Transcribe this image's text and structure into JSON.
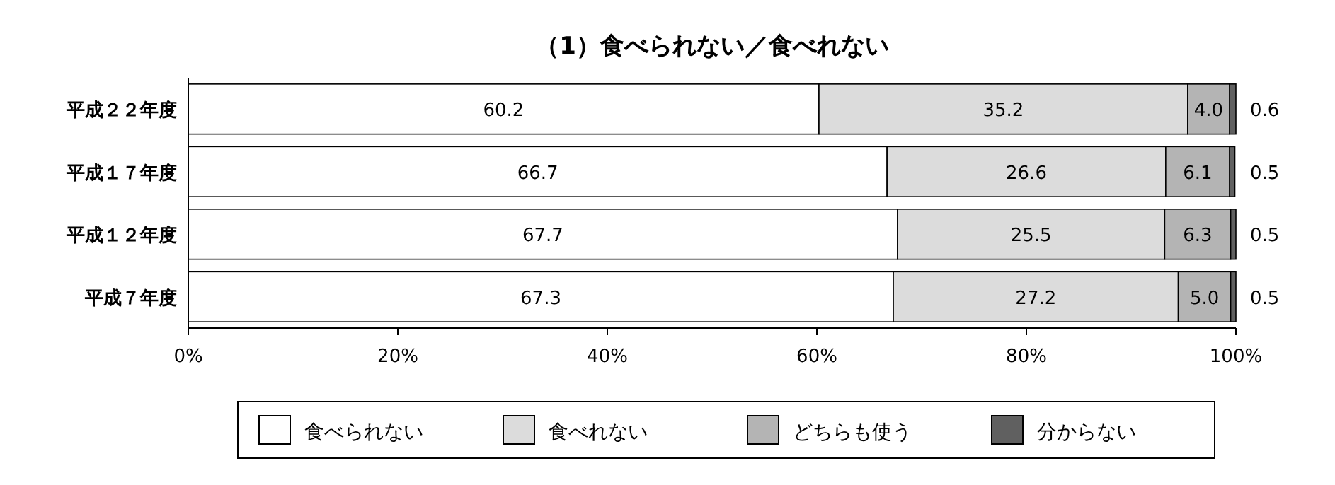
{
  "chart_data": {
    "type": "bar",
    "orientation": "horizontal",
    "stacked": true,
    "title": "（1）食べられない／食べれない",
    "categories": [
      "平成２２年度",
      "平成１７年度",
      "平成１２年度",
      "平成７年度"
    ],
    "series": [
      {
        "name": "食べられない",
        "color": "#ffffff",
        "values": [
          60.2,
          66.7,
          67.7,
          67.3
        ],
        "value_labels": [
          "60.2",
          "66.7",
          "67.7",
          "67.3"
        ]
      },
      {
        "name": "食べれない",
        "color": "#dcdcdc",
        "values": [
          35.2,
          26.6,
          25.5,
          27.2
        ],
        "value_labels": [
          "35.2",
          "26.6",
          "25.5",
          "27.2"
        ]
      },
      {
        "name": "どちらも使う",
        "color": "#b4b4b4",
        "values": [
          4.0,
          6.1,
          6.3,
          5.0
        ],
        "value_labels": [
          "4.0",
          "6.1",
          "6.3",
          "5.0"
        ]
      },
      {
        "name": "分からない",
        "color": "#606060",
        "values": [
          0.6,
          0.5,
          0.5,
          0.5
        ],
        "value_labels": [
          "0.6",
          "0.5",
          "0.5",
          "0.5"
        ]
      }
    ],
    "xlim": [
      0,
      100
    ],
    "xticks": [
      {
        "value": 0,
        "label": "0%"
      },
      {
        "value": 20,
        "label": "20%"
      },
      {
        "value": 40,
        "label": "40%"
      },
      {
        "value": 60,
        "label": "60%"
      },
      {
        "value": 80,
        "label": "80%"
      },
      {
        "value": 100,
        "label": "100%"
      }
    ],
    "legend": "bottom",
    "grid": false
  }
}
